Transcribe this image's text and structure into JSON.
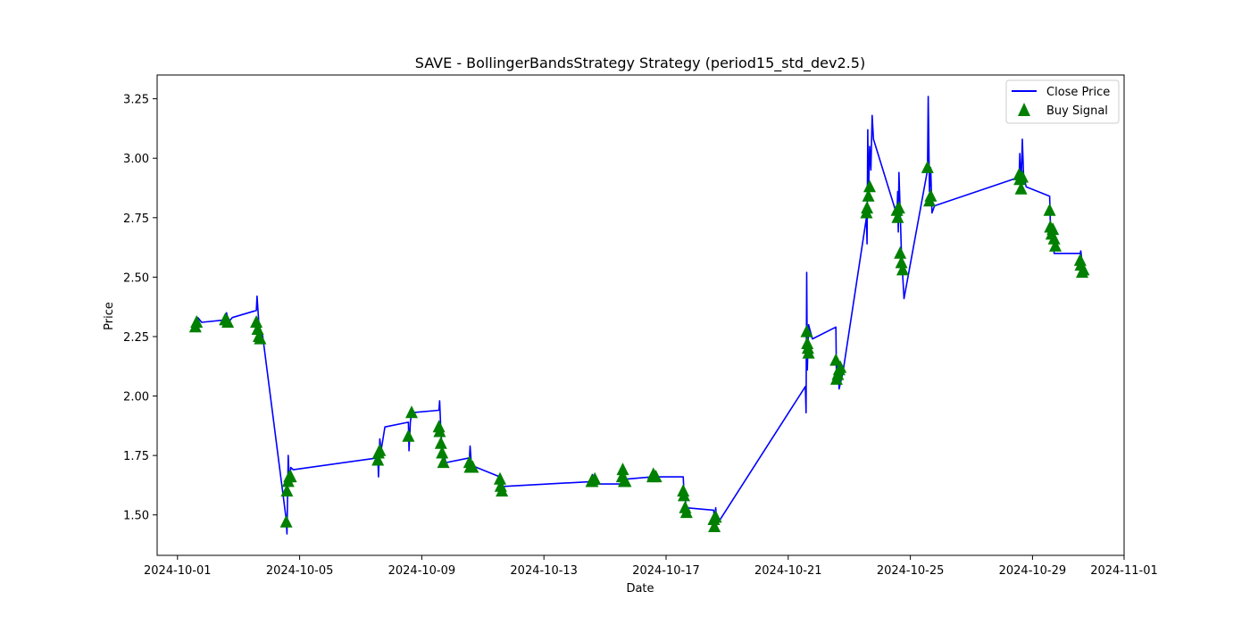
{
  "chart_data": {
    "type": "line",
    "title": "SAVE - BollingerBandsStrategy Strategy (period15_std_dev2.5)",
    "xlabel": "Date",
    "ylabel": "Price",
    "x_axis_type": "date",
    "xlim": [
      "2024-09-30T08:00",
      "2024-11-01T00:00"
    ],
    "ylim": [
      1.33,
      3.35
    ],
    "x_ticks": [
      "2024-10-01",
      "2024-10-05",
      "2024-10-09",
      "2024-10-13",
      "2024-10-17",
      "2024-10-21",
      "2024-10-25",
      "2024-10-29",
      "2024-11-01"
    ],
    "y_ticks": [
      1.5,
      1.75,
      2.0,
      2.25,
      2.5,
      2.75,
      3.0,
      3.25
    ],
    "grid": false,
    "legend_position": "upper right",
    "colors": {
      "close": "#0000ff",
      "buy": "#008000",
      "axes": "#000000"
    },
    "series": [
      {
        "name": "Close Price",
        "kind": "line",
        "points": [
          [
            "2024-10-01T14:00",
            2.3
          ],
          [
            "2024-10-01T16:00",
            2.33
          ],
          [
            "2024-10-01T19:00",
            2.31
          ],
          [
            "2024-10-02T13:30",
            2.32
          ],
          [
            "2024-10-02T14:30",
            2.35
          ],
          [
            "2024-10-02T16:00",
            2.31
          ],
          [
            "2024-10-02T19:00",
            2.33
          ],
          [
            "2024-10-03T14:00",
            2.36
          ],
          [
            "2024-10-03T14:30",
            2.42
          ],
          [
            "2024-10-03T16:00",
            2.3
          ],
          [
            "2024-10-03T19:00",
            2.25
          ],
          [
            "2024-10-04T13:30",
            1.48
          ],
          [
            "2024-10-04T14:00",
            1.42
          ],
          [
            "2024-10-04T15:00",
            1.75
          ],
          [
            "2024-10-04T16:00",
            1.62
          ],
          [
            "2024-10-04T17:00",
            1.7
          ],
          [
            "2024-10-04T19:00",
            1.69
          ],
          [
            "2024-10-07T13:30",
            1.74
          ],
          [
            "2024-10-07T14:00",
            1.66
          ],
          [
            "2024-10-07T15:00",
            1.82
          ],
          [
            "2024-10-07T16:00",
            1.77
          ],
          [
            "2024-10-07T19:00",
            1.87
          ],
          [
            "2024-10-08T13:30",
            1.89
          ],
          [
            "2024-10-08T14:00",
            1.77
          ],
          [
            "2024-10-08T15:00",
            1.89
          ],
          [
            "2024-10-08T16:00",
            1.93
          ],
          [
            "2024-10-09T13:30",
            1.94
          ],
          [
            "2024-10-09T14:00",
            1.98
          ],
          [
            "2024-10-09T15:00",
            1.85
          ],
          [
            "2024-10-09T16:00",
            1.78
          ],
          [
            "2024-10-09T19:00",
            1.72
          ],
          [
            "2024-10-10T13:30",
            1.74
          ],
          [
            "2024-10-10T14:00",
            1.79
          ],
          [
            "2024-10-10T15:00",
            1.71
          ],
          [
            "2024-10-10T19:00",
            1.7
          ],
          [
            "2024-10-11T13:30",
            1.66
          ],
          [
            "2024-10-11T14:00",
            1.63
          ],
          [
            "2024-10-11T16:00",
            1.62
          ],
          [
            "2024-10-14T13:30",
            1.64
          ],
          [
            "2024-10-14T14:00",
            1.67
          ],
          [
            "2024-10-14T16:00",
            1.63
          ],
          [
            "2024-10-15T13:30",
            1.63
          ],
          [
            "2024-10-15T14:00",
            1.68
          ],
          [
            "2024-10-15T15:00",
            1.65
          ],
          [
            "2024-10-16T13:30",
            1.66
          ],
          [
            "2024-10-16T14:00",
            1.69
          ],
          [
            "2024-10-16T16:00",
            1.66
          ],
          [
            "2024-10-17T13:30",
            1.66
          ],
          [
            "2024-10-17T14:00",
            1.6
          ],
          [
            "2024-10-17T16:00",
            1.53
          ],
          [
            "2024-10-18T13:30",
            1.52
          ],
          [
            "2024-10-18T14:00",
            1.47
          ],
          [
            "2024-10-18T15:00",
            1.53
          ],
          [
            "2024-10-18T16:00",
            1.46
          ],
          [
            "2024-10-21T13:30",
            2.04
          ],
          [
            "2024-10-21T14:00",
            1.93
          ],
          [
            "2024-10-21T14:30",
            2.52
          ],
          [
            "2024-10-21T15:00",
            2.11
          ],
          [
            "2024-10-21T16:00",
            2.3
          ],
          [
            "2024-10-21T19:00",
            2.24
          ],
          [
            "2024-10-22T13:30",
            2.29
          ],
          [
            "2024-10-22T14:00",
            2.06
          ],
          [
            "2024-10-22T15:00",
            2.15
          ],
          [
            "2024-10-22T16:00",
            2.03
          ],
          [
            "2024-10-22T19:00",
            2.1
          ],
          [
            "2024-10-23T13:30",
            2.75
          ],
          [
            "2024-10-23T14:00",
            2.64
          ],
          [
            "2024-10-23T14:30",
            3.12
          ],
          [
            "2024-10-23T15:00",
            2.83
          ],
          [
            "2024-10-23T16:00",
            3.05
          ],
          [
            "2024-10-23T17:00",
            2.95
          ],
          [
            "2024-10-23T18:00",
            3.18
          ],
          [
            "2024-10-23T19:00",
            3.08
          ],
          [
            "2024-10-24T13:30",
            2.76
          ],
          [
            "2024-10-24T14:00",
            2.86
          ],
          [
            "2024-10-24T14:30",
            2.69
          ],
          [
            "2024-10-24T15:00",
            2.94
          ],
          [
            "2024-10-24T16:00",
            2.78
          ],
          [
            "2024-10-24T17:00",
            2.6
          ],
          [
            "2024-10-24T19:00",
            2.41
          ],
          [
            "2024-10-25T13:30",
            2.95
          ],
          [
            "2024-10-25T14:00",
            3.26
          ],
          [
            "2024-10-25T15:00",
            2.86
          ],
          [
            "2024-10-25T16:00",
            2.96
          ],
          [
            "2024-10-25T17:00",
            2.77
          ],
          [
            "2024-10-25T19:00",
            2.8
          ],
          [
            "2024-10-28T13:30",
            2.92
          ],
          [
            "2024-10-28T14:00",
            3.02
          ],
          [
            "2024-10-28T15:00",
            2.88
          ],
          [
            "2024-10-28T16:00",
            3.08
          ],
          [
            "2024-10-28T17:00",
            2.93
          ],
          [
            "2024-10-28T19:00",
            2.88
          ],
          [
            "2024-10-29T13:30",
            2.84
          ],
          [
            "2024-10-29T14:00",
            2.74
          ],
          [
            "2024-10-29T15:00",
            2.67
          ],
          [
            "2024-10-29T16:00",
            2.71
          ],
          [
            "2024-10-29T17:00",
            2.6
          ],
          [
            "2024-10-29T19:00",
            2.6
          ],
          [
            "2024-10-30T13:30",
            2.6
          ],
          [
            "2024-10-30T14:00",
            2.61
          ],
          [
            "2024-10-30T15:00",
            2.56
          ],
          [
            "2024-10-30T16:00",
            2.52
          ]
        ]
      },
      {
        "name": "Buy Signal",
        "kind": "scatter",
        "marker": "triangle-up",
        "points": [
          [
            "2024-10-01T14:00",
            2.29
          ],
          [
            "2024-10-01T15:00",
            2.31
          ],
          [
            "2024-10-02T13:30",
            2.32
          ],
          [
            "2024-10-02T14:00",
            2.32
          ],
          [
            "2024-10-02T15:30",
            2.31
          ],
          [
            "2024-10-03T14:00",
            2.31
          ],
          [
            "2024-10-03T15:00",
            2.28
          ],
          [
            "2024-10-03T16:00",
            2.25
          ],
          [
            "2024-10-03T17:00",
            2.24
          ],
          [
            "2024-10-04T13:30",
            1.47
          ],
          [
            "2024-10-04T14:00",
            1.6
          ],
          [
            "2024-10-04T15:00",
            1.64
          ],
          [
            "2024-10-04T16:00",
            1.66
          ],
          [
            "2024-10-04T17:00",
            1.66
          ],
          [
            "2024-10-07T13:30",
            1.73
          ],
          [
            "2024-10-07T14:00",
            1.76
          ],
          [
            "2024-10-07T15:00",
            1.77
          ],
          [
            "2024-10-08T13:30",
            1.83
          ],
          [
            "2024-10-08T16:00",
            1.93
          ],
          [
            "2024-10-09T13:30",
            1.87
          ],
          [
            "2024-10-09T14:00",
            1.85
          ],
          [
            "2024-10-09T15:00",
            1.8
          ],
          [
            "2024-10-09T16:00",
            1.76
          ],
          [
            "2024-10-09T17:00",
            1.72
          ],
          [
            "2024-10-10T13:30",
            1.72
          ],
          [
            "2024-10-10T14:00",
            1.7
          ],
          [
            "2024-10-10T16:00",
            1.7
          ],
          [
            "2024-10-11T13:30",
            1.65
          ],
          [
            "2024-10-11T14:00",
            1.62
          ],
          [
            "2024-10-11T15:00",
            1.6
          ],
          [
            "2024-10-14T13:30",
            1.64
          ],
          [
            "2024-10-14T14:00",
            1.64
          ],
          [
            "2024-10-14T16:00",
            1.65
          ],
          [
            "2024-10-15T13:30",
            1.66
          ],
          [
            "2024-10-15T14:00",
            1.69
          ],
          [
            "2024-10-15T15:00",
            1.64
          ],
          [
            "2024-10-15T16:00",
            1.64
          ],
          [
            "2024-10-16T13:30",
            1.66
          ],
          [
            "2024-10-16T14:00",
            1.67
          ],
          [
            "2024-10-16T16:00",
            1.66
          ],
          [
            "2024-10-17T13:30",
            1.6
          ],
          [
            "2024-10-17T14:00",
            1.58
          ],
          [
            "2024-10-17T15:00",
            1.53
          ],
          [
            "2024-10-17T16:00",
            1.51
          ],
          [
            "2024-10-18T13:30",
            1.48
          ],
          [
            "2024-10-18T14:00",
            1.45
          ],
          [
            "2024-10-18T15:00",
            1.49
          ],
          [
            "2024-10-21T14:30",
            2.27
          ],
          [
            "2024-10-21T15:00",
            2.22
          ],
          [
            "2024-10-21T15:30",
            2.2
          ],
          [
            "2024-10-21T16:00",
            2.18
          ],
          [
            "2024-10-22T13:30",
            2.15
          ],
          [
            "2024-10-22T14:00",
            2.07
          ],
          [
            "2024-10-22T15:00",
            2.09
          ],
          [
            "2024-10-22T16:00",
            2.11
          ],
          [
            "2024-10-22T17:00",
            2.12
          ],
          [
            "2024-10-23T13:30",
            2.77
          ],
          [
            "2024-10-23T14:00",
            2.79
          ],
          [
            "2024-10-23T15:00",
            2.84
          ],
          [
            "2024-10-23T16:00",
            2.88
          ],
          [
            "2024-10-24T13:30",
            2.78
          ],
          [
            "2024-10-24T14:00",
            2.75
          ],
          [
            "2024-10-24T15:00",
            2.79
          ],
          [
            "2024-10-24T16:00",
            2.6
          ],
          [
            "2024-10-24T17:00",
            2.56
          ],
          [
            "2024-10-24T18:00",
            2.53
          ],
          [
            "2024-10-25T13:30",
            2.96
          ],
          [
            "2024-10-25T15:00",
            2.82
          ],
          [
            "2024-10-25T16:00",
            2.84
          ],
          [
            "2024-10-28T13:30",
            2.93
          ],
          [
            "2024-10-28T14:00",
            2.91
          ],
          [
            "2024-10-28T15:00",
            2.87
          ],
          [
            "2024-10-28T16:00",
            2.92
          ],
          [
            "2024-10-29T13:30",
            2.78
          ],
          [
            "2024-10-29T14:00",
            2.71
          ],
          [
            "2024-10-29T15:00",
            2.68
          ],
          [
            "2024-10-29T16:00",
            2.7
          ],
          [
            "2024-10-29T17:00",
            2.66
          ],
          [
            "2024-10-29T18:00",
            2.63
          ],
          [
            "2024-10-30T13:30",
            2.57
          ],
          [
            "2024-10-30T14:00",
            2.55
          ],
          [
            "2024-10-30T15:00",
            2.52
          ],
          [
            "2024-10-30T16:00",
            2.53
          ]
        ]
      }
    ]
  }
}
